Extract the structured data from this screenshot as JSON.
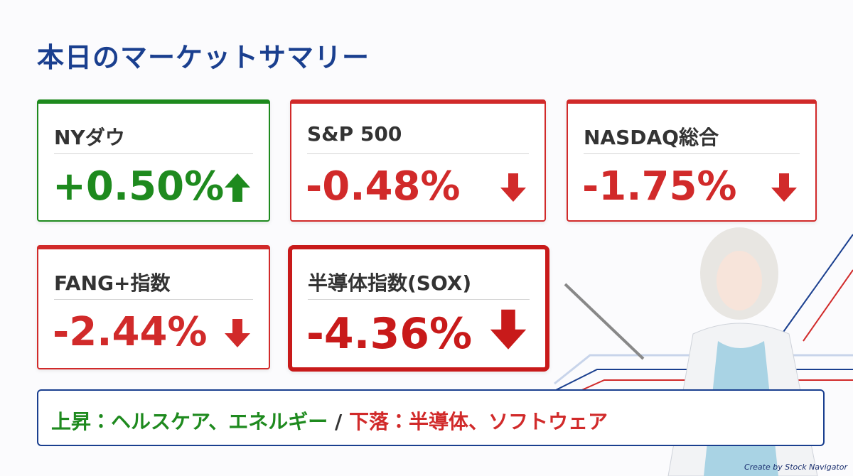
{
  "title": "本日のマーケットサマリー",
  "cards": [
    {
      "name": "NYダウ",
      "change": "+0.50%",
      "direction": "up",
      "color": "#1e8a1e"
    },
    {
      "name": "S&P 500",
      "change": "-0.48%",
      "direction": "down",
      "color": "#d12a2a"
    },
    {
      "name": "NASDAQ総合",
      "change": "-1.75%",
      "direction": "down",
      "color": "#d12a2a"
    },
    {
      "name": "FANG+指数",
      "change": "-2.44%",
      "direction": "down",
      "color": "#d12a2a"
    },
    {
      "name": "半導体指数(SOX)",
      "change": "-4.36%",
      "direction": "down",
      "color": "#c81a1a",
      "highlight": true
    }
  ],
  "footer": {
    "up": "上昇：ヘルスケア、エネルギー",
    "separator": " / ",
    "down": "下落：半導体、ソフトウェア"
  },
  "credit": "Create by Stock Navigator"
}
